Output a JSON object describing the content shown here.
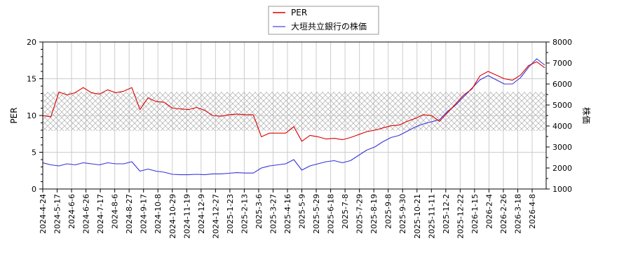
{
  "chart_data": {
    "type": "line",
    "title": "",
    "xlabel": "",
    "ylabel": "PER",
    "y2label": "株価",
    "ylim": [
      0,
      20
    ],
    "y2lim": [
      1000,
      8000
    ],
    "yticks": [
      0,
      5,
      10,
      15,
      20
    ],
    "y2ticks": [
      1000,
      2000,
      3000,
      4000,
      5000,
      6000,
      7000,
      8000
    ],
    "grid": true,
    "legend_position": "top-center",
    "band": {
      "description": "hatched PER reference band",
      "from": 7.9,
      "to": 13.2
    },
    "x_tick_labels": [
      "2024-4-24",
      "2024-5-17",
      "2024-6-6",
      "2024-6-26",
      "2024-7-17",
      "2024-8-6",
      "2024-8-27",
      "2024-9-17",
      "2024-10-8",
      "2024-10-29",
      "2024-11-19",
      "2024-12-9",
      "2024-12-27",
      "2025-1-23",
      "2025-2-13",
      "2025-3-6",
      "2025-3-27",
      "2025-4-16",
      "2025-5-9",
      "2025-5-29",
      "2025-6-18",
      "2025-7-8",
      "2025-7-29",
      "2025-8-19",
      "2025-9-8",
      "2025-9-30",
      "2025-10-21",
      "2025-11-11",
      "2025-12-2",
      "2025-12-22",
      "2026-1-15",
      "2026-2-4",
      "2026-2-26",
      "2026-3-18",
      "2026-4-8"
    ],
    "series": [
      {
        "name": "PER",
        "axis": "left",
        "color": "#dd0000",
        "values": [
          10.0,
          9.8,
          13.2,
          12.8,
          13.1,
          13.8,
          13.1,
          12.9,
          13.5,
          13.1,
          13.3,
          13.8,
          10.8,
          12.4,
          11.9,
          11.8,
          11.0,
          10.9,
          10.8,
          11.1,
          10.7,
          10.0,
          9.9,
          10.1,
          10.2,
          10.1,
          10.1,
          7.1,
          7.6,
          7.6,
          7.6,
          8.5,
          6.5,
          7.3,
          7.1,
          6.8,
          6.9,
          6.7,
          7.0,
          7.4,
          7.8,
          8.0,
          8.3,
          8.6,
          8.7,
          9.2,
          9.6,
          10.1,
          10.0,
          9.2,
          10.4,
          11.6,
          12.8,
          13.6,
          15.4,
          16.0,
          15.5,
          15.0,
          14.8,
          15.5,
          16.8,
          17.3,
          16.5
        ]
      },
      {
        "name": "大垣共立銀行の株価",
        "axis": "right",
        "color": "#3333dd",
        "values": [
          2250,
          2150,
          2100,
          2200,
          2150,
          2250,
          2200,
          2150,
          2250,
          2200,
          2200,
          2300,
          1850,
          1950,
          1850,
          1800,
          1700,
          1680,
          1680,
          1700,
          1680,
          1720,
          1720,
          1750,
          1780,
          1760,
          1760,
          2000,
          2100,
          2150,
          2200,
          2400,
          1900,
          2100,
          2200,
          2300,
          2350,
          2250,
          2350,
          2600,
          2850,
          3000,
          3250,
          3450,
          3550,
          3750,
          3950,
          4100,
          4200,
          4300,
          4700,
          5000,
          5400,
          5800,
          6200,
          6400,
          6200,
          6000,
          6000,
          6300,
          6800,
          7200,
          6900
        ]
      }
    ]
  },
  "legend": {
    "items": [
      {
        "label": "PER",
        "color": "#dd0000"
      },
      {
        "label": "大垣共立銀行の株価",
        "color": "#3333dd"
      }
    ]
  },
  "axes": {
    "left_title": "PER",
    "right_title": "株価"
  }
}
